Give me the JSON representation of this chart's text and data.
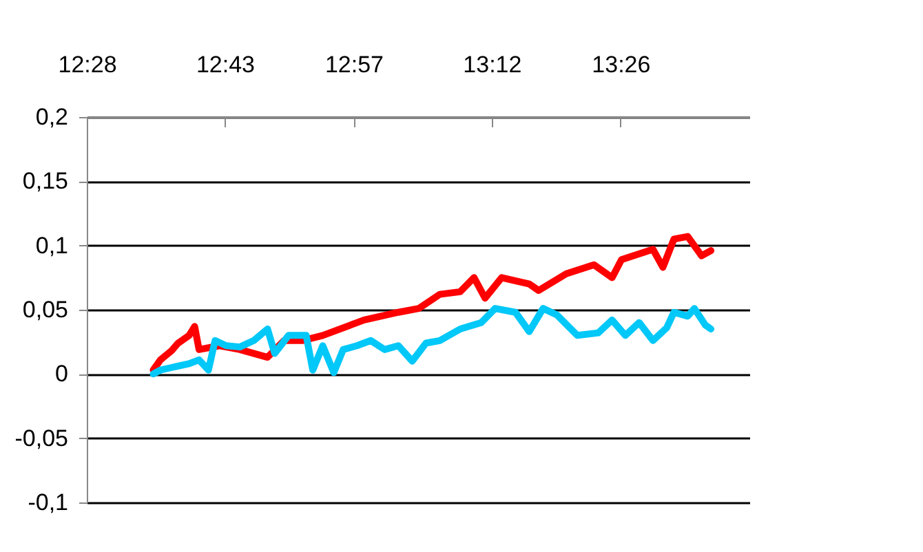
{
  "chart_data": {
    "type": "line",
    "grid": "y",
    "line_style": "solid",
    "xlim": [
      12.4667,
      13.6667
    ],
    "ylim": [
      -0.1,
      0.2
    ],
    "xticks": [
      {
        "value": 12.4667,
        "label": "12:28"
      },
      {
        "value": 12.7167,
        "label": "12:43"
      },
      {
        "value": 12.95,
        "label": "12:57"
      },
      {
        "value": 13.2,
        "label": "13:12"
      },
      {
        "value": 13.4333,
        "label": "13:26"
      }
    ],
    "yticks": [
      {
        "value": -0.1,
        "label": "-0,1"
      },
      {
        "value": -0.05,
        "label": "-0,05"
      },
      {
        "value": 0,
        "label": "0"
      },
      {
        "value": 0.05,
        "label": "0,05"
      },
      {
        "value": 0.1,
        "label": "0,1"
      },
      {
        "value": 0.15,
        "label": "0,15"
      },
      {
        "value": 0.2,
        "label": "0,2"
      }
    ],
    "series": [
      {
        "color": "#ff0000",
        "x": [
          12.587,
          12.6,
          12.62,
          12.632,
          12.652,
          12.662,
          12.67,
          12.707,
          12.744,
          12.794,
          12.824,
          12.857,
          12.894,
          12.944,
          12.969,
          13.031,
          13.068,
          13.106,
          13.143,
          13.168,
          13.188,
          13.218,
          13.268,
          13.285,
          13.335,
          13.385,
          13.418,
          13.435,
          13.492,
          13.51,
          13.53,
          13.555,
          13.58,
          13.597
        ],
        "values": [
          0.003,
          0.011,
          0.018,
          0.024,
          0.03,
          0.037,
          0.019,
          0.022,
          0.019,
          0.013,
          0.026,
          0.026,
          0.03,
          0.038,
          0.042,
          0.048,
          0.051,
          0.062,
          0.064,
          0.075,
          0.059,
          0.075,
          0.07,
          0.065,
          0.078,
          0.085,
          0.075,
          0.089,
          0.097,
          0.083,
          0.105,
          0.107,
          0.092,
          0.096
        ]
      },
      {
        "color": "#00c8f8",
        "x": [
          12.587,
          12.6,
          12.62,
          12.652,
          12.67,
          12.687,
          12.699,
          12.719,
          12.744,
          12.769,
          12.794,
          12.807,
          12.832,
          12.864,
          12.876,
          12.894,
          12.914,
          12.931,
          12.956,
          12.981,
          13.006,
          13.031,
          13.056,
          13.081,
          13.106,
          13.143,
          13.181,
          13.206,
          13.243,
          13.268,
          13.293,
          13.318,
          13.355,
          13.393,
          13.418,
          13.442,
          13.467,
          13.492,
          13.517,
          13.53,
          13.555,
          13.567,
          13.587,
          13.597
        ],
        "values": [
          0,
          0.003,
          0.005,
          0.008,
          0.011,
          0.003,
          0.026,
          0.022,
          0.021,
          0.026,
          0.035,
          0.016,
          0.03,
          0.03,
          0.003,
          0.022,
          0.001,
          0.019,
          0.022,
          0.026,
          0.019,
          0.022,
          0.01,
          0.024,
          0.026,
          0.035,
          0.04,
          0.051,
          0.048,
          0.033,
          0.051,
          0.046,
          0.03,
          0.032,
          0.042,
          0.03,
          0.04,
          0.026,
          0.036,
          0.048,
          0.045,
          0.051,
          0.038,
          0.035
        ]
      }
    ]
  }
}
